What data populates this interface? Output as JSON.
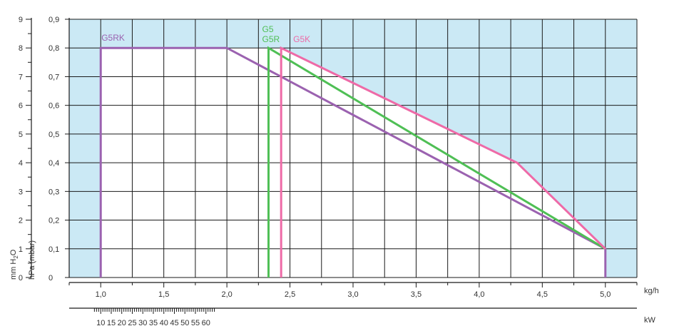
{
  "chart_data": {
    "type": "line",
    "x_axis": {
      "unit": "kg/h",
      "range": [
        0.75,
        5.25
      ],
      "ticks": [
        "1,0",
        "1,5",
        "2,0",
        "2,5",
        "3,0",
        "3,5",
        "4,0",
        "4,5",
        "5,0"
      ],
      "tick_values": [
        1.0,
        1.5,
        2.0,
        2.5,
        3.0,
        3.5,
        4.0,
        4.5,
        5.0
      ]
    },
    "x_axis_secondary": {
      "unit": "kW",
      "ticks": [
        "10",
        "15",
        "20",
        "25",
        "30",
        "35",
        "40",
        "45",
        "50",
        "55",
        "60"
      ],
      "tick_values": [
        10,
        15,
        20,
        25,
        30,
        35,
        40,
        45,
        50,
        55,
        60
      ]
    },
    "y_axis_left": {
      "label": "mm H2O",
      "label_main": "mm H",
      "label_sub": "2",
      "label_end": "O",
      "ticks": [
        "0",
        "1",
        "2",
        "3",
        "4",
        "5",
        "6",
        "7",
        "8",
        "9"
      ],
      "range": [
        0,
        9
      ]
    },
    "y_axis_right": {
      "label": "hPa (mbar)",
      "ticks": [
        "0",
        "0,1",
        "0,2",
        "0,3",
        "0,4",
        "0,5",
        "0,6",
        "0,7",
        "0,8",
        "0,9"
      ],
      "range": [
        0,
        0.9
      ]
    },
    "grid": true,
    "background_color": "#cbe9f5",
    "working_area_color": "#ffffff",
    "series": [
      {
        "name": "G5RK",
        "color": "#9b62b0",
        "points": [
          [
            1.0,
            0.0
          ],
          [
            1.0,
            0.8
          ],
          [
            2.0,
            0.8
          ],
          [
            5.0,
            0.1
          ],
          [
            5.0,
            0.0
          ]
        ]
      },
      {
        "name": "G5 / G5R",
        "label_lines": [
          "G5",
          "G5R"
        ],
        "color": "#4fbf55",
        "points": [
          [
            2.33,
            0.0
          ],
          [
            2.33,
            0.8
          ],
          [
            5.0,
            0.1
          ]
        ]
      },
      {
        "name": "G5K",
        "color": "#ee6aa7",
        "points": [
          [
            2.43,
            0.0
          ],
          [
            2.43,
            0.8
          ],
          [
            4.3,
            0.4
          ],
          [
            5.0,
            0.1
          ]
        ]
      }
    ]
  }
}
